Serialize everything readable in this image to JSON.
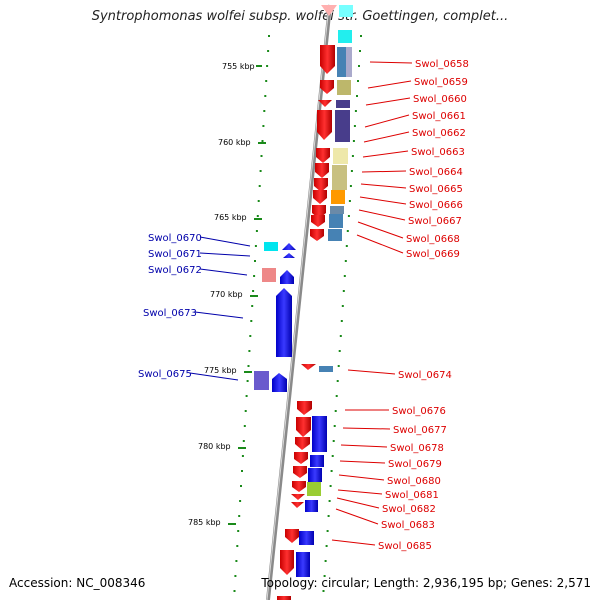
{
  "title": "Syntrophomonas wolfei subsp. wolfei str. Goettingen, complet...",
  "footer": {
    "accession": "Accession: NC_008346",
    "summary": "Topology: circular; Length: 2,936,195 bp; Genes: 2,571"
  },
  "scale_labels": [
    "755 kbp",
    "760 kbp",
    "765 kbp",
    "770 kbp",
    "775 kbp",
    "780 kbp",
    "785 kbp"
  ],
  "colors": {
    "forward_strand_gene": "#ee1111",
    "reverse_strand_gene": "#1111ee",
    "right_label": "#dd0000",
    "left_label": "#0000aa",
    "tick": "#1a8a1a",
    "backbone": "#888888"
  },
  "right_labels": [
    "Swol_0658",
    "Swol_0659",
    "Swol_0660",
    "Swol_0661",
    "Swol_0662",
    "Swol_0663",
    "Swol_0664",
    "Swol_0665",
    "Swol_0666",
    "Swol_0667",
    "Swol_0668",
    "Swol_0669",
    "Swol_0674",
    "Swol_0676",
    "Swol_0677",
    "Swol_0678",
    "Swol_0679",
    "Swol_0680",
    "Swol_0681",
    "Swol_0682",
    "Swol_0683",
    "Swol_0685"
  ],
  "left_labels": [
    "Swol_0670",
    "Swol_0671",
    "Swol_0672",
    "Swol_0673",
    "Swol_0675"
  ]
}
